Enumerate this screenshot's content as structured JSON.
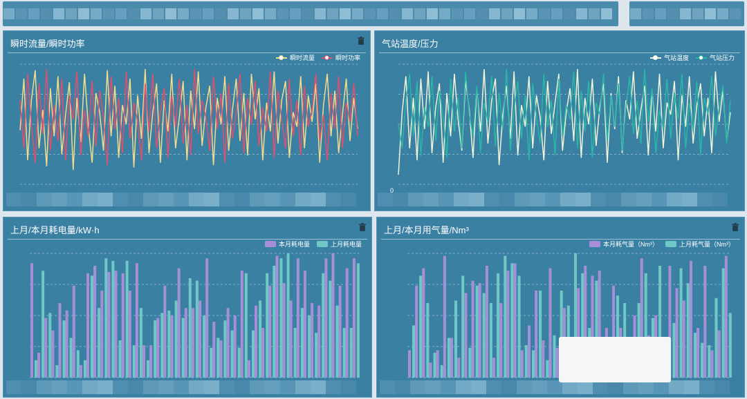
{
  "panels": [
    {
      "title": "瞬时流量/瞬时功率",
      "legend": [
        "瞬时流量",
        "瞬时功率"
      ],
      "chart_data": {
        "type": "line",
        "series": [
          {
            "name": "瞬时流量",
            "color": "#f3dc8b",
            "values": [
              45,
              88,
              20,
              70,
              95,
              30,
              62,
              15,
              80,
              40,
              90,
              25,
              58,
              85,
              12,
              72,
              35,
              92,
              48,
              18,
              76,
              60,
              28,
              95,
              40,
              82,
              22,
              66,
              50,
              88,
              14,
              74,
              38,
              96,
              26,
              60,
              84,
              18,
              70,
              44,
              92,
              30,
              56,
              86,
              20,
              78,
              46,
              94,
              32,
              64,
              82,
              16,
              72,
              50,
              90,
              28,
              62,
              88,
              36,
              76,
              24,
              92,
              54,
              80,
              20,
              68,
              44,
              94,
              34,
              70,
              86,
              22,
              60,
              48,
              90,
              30,
              74,
              52,
              84,
              18,
              66,
              92,
              40,
              78,
              26,
              58,
              88,
              36,
              72,
              46
            ]
          },
          {
            "name": "瞬时功率",
            "color": "#e0506e",
            "values": [
              70,
              30,
              92,
              50,
              18,
              84,
              42,
              96,
              28,
              66,
              36,
              88,
              20,
              74,
              54,
              94,
              24,
              62,
              40,
              86,
              32,
              78,
              56,
              16,
              90,
              46,
              72,
              26,
              94,
              38,
              68,
              52,
              20,
              84,
              44,
              92,
              30,
              60,
              80,
              22,
              74,
              48,
              88,
              34,
              66,
              24,
              96,
              42,
              70,
              56,
              28,
              90,
              46,
              76,
              18,
              84,
              38,
              60,
              92,
              26,
              72,
              50,
              86,
              32,
              64,
              44,
              94,
              22,
              78,
              54,
              30,
              88,
              40,
              70,
              24,
              82,
              48,
              62,
              92,
              36,
              58,
              20,
              76,
              46,
              90,
              30,
              68,
              52,
              84,
              40
            ]
          }
        ],
        "ylim": [
          0,
          100
        ]
      }
    },
    {
      "title": "气站温度/压力",
      "legend": [
        "气站温度",
        "气站压力"
      ],
      "zero_label": "0",
      "chart_data": {
        "type": "line",
        "series": [
          {
            "name": "气站温度",
            "color": "#f1f4d8",
            "values": [
              8,
              60,
              90,
              30,
              72,
              20,
              88,
              46,
              94,
              26,
              64,
              84,
              18,
              76,
              40,
              92,
              54,
              28,
              86,
              62,
              22,
              80,
              44,
              96,
              34,
              70,
              88,
              16,
              58,
              82,
              38,
              94,
              24,
              66,
              48,
              90,
              30,
              74,
              56,
              20,
              86,
              42,
              68,
              92,
              28,
              60,
              80,
              36,
              96,
              22,
              72,
              50,
              88,
              32,
              64,
              84,
              18,
              76,
              46,
              90,
              26,
              70,
              54,
              94,
              38,
              62,
              82,
              24,
              78,
              44,
              92,
              30,
              68,
              58,
              86,
              20,
              74,
              48,
              90,
              34,
              66,
              84,
              40,
              72,
              26,
              94,
              52,
              78,
              36,
              60
            ]
          },
          {
            "name": "气站压力",
            "color": "#2ab7a6",
            "values": [
              50,
              30,
              70,
              92,
              40,
              86,
              24,
              64,
              48,
              90,
              36,
              78,
              56,
              22,
              88,
              44,
              72,
              30,
              94,
              58,
              40,
              82,
              26,
              68,
              52,
              90,
              32,
              76,
              46,
              96,
              28,
              62,
              86,
              38,
              74,
              20,
              84,
              56,
              34,
              92,
              48,
              70,
              24,
              88,
              40,
              66,
              54,
              94,
              30,
              78,
              44,
              86,
              22,
              68,
              58,
              92,
              36,
              74,
              48,
              84,
              28,
              64,
              90,
              42,
              70,
              34,
              96,
              52,
              80,
              26,
              62,
              46,
              88,
              38,
              76,
              54,
              92,
              30,
              68,
              44,
              86,
              24,
              72,
              58,
              90,
              40,
              64,
              82,
              34,
              70
            ]
          }
        ],
        "ylim": [
          0,
          100
        ]
      }
    },
    {
      "title": "上月/本月耗电量/kW·h",
      "legend": [
        "本月耗电量",
        "上月耗电量"
      ],
      "chart_data": {
        "type": "bar",
        "series": [
          {
            "name": "本月耗电量",
            "color": "#a68fd8",
            "values": [
              92,
              20,
              48,
              38,
              60,
              54,
              74,
              10,
              84,
              90,
              70,
              85,
              86,
              84,
              70,
              92,
              26,
              26,
              48,
              74,
              50,
              88,
              56,
              56,
              62,
              96,
              45,
              30,
              56,
              50,
              86,
              14,
              58,
              40,
              74,
              98,
              76,
              62,
              96,
              86,
              60,
              58,
              96,
              100,
              74,
              88,
              96
            ]
          },
          {
            "name": "上月耗电量",
            "color": "#6fc8c6",
            "values": [
              14,
              86,
              52,
              10,
              46,
              32,
              22,
              14,
              82,
              56,
              96,
              94,
              30,
              94,
              26,
              56,
              14,
              46,
              52,
              54,
              62,
              48,
              80,
              78,
              50,
              24,
              32,
              46,
              38,
              24,
              84,
              38,
              62,
              84,
              90,
              96,
              100,
              40,
              56,
              50,
              36,
              84,
              78,
              58,
              40,
              40,
              92
            ]
          }
        ],
        "ylim": [
          0,
          100
        ]
      }
    },
    {
      "title": "上月/本月用气量/Nm³",
      "legend": [
        "本月耗气量（Nm³）",
        "上月耗气量（Nm³）"
      ],
      "chart_data": {
        "type": "bar",
        "series": [
          {
            "name": "本月耗气量（Nm³）",
            "color": "#a68fd8",
            "values": [
              22,
              74,
              88,
              12,
              22,
              98,
              32,
              16,
              68,
              78,
              76,
              90,
              16,
              60,
              86,
              92,
              22,
              42,
              70,
              30,
              88,
              24,
              56,
              26,
              72,
              90,
              82,
              86,
              40,
              74,
              40,
              26,
              50,
              96,
              34,
              50,
              26,
              90,
              72,
              62,
              94,
              40,
              90,
              22,
              38,
              98
            ]
          },
          {
            "name": "上月耗气量（Nm³）",
            "color": "#6fc8c6",
            "values": [
              42,
              82,
              60,
              20,
              10,
              32,
              62,
              82,
              24,
              74,
              68,
              60,
              84,
              98,
              92,
              82,
              26,
              22,
              70,
              14,
              34,
              70,
              58,
              100,
              84,
              40,
              78,
              18,
              28,
              66,
              60,
              22,
              60,
              84,
              48,
              90,
              28,
              44,
              88,
              76,
              36,
              28,
              26,
              64,
              88,
              52
            ]
          }
        ],
        "ylim": [
          0,
          100
        ]
      }
    }
  ]
}
